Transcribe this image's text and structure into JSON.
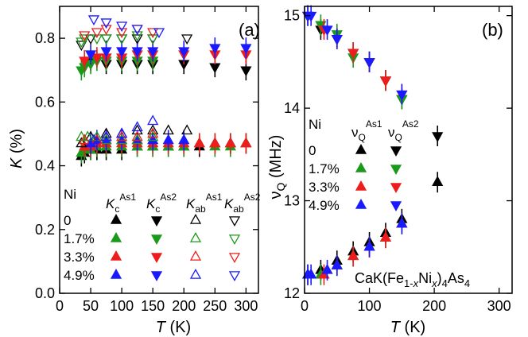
{
  "colors": {
    "black": "#000000",
    "green": "#1a9a1a",
    "red": "#ee1c1c",
    "blue": "#1a1aff"
  },
  "chart_data": [
    {
      "type": "scatter",
      "panel_label": "(a)",
      "xlabel_italic": "T",
      "xlabel_unit": " (K)",
      "ylabel_italic": "K",
      "ylabel_unit": " (%)",
      "xlim": [
        0,
        320
      ],
      "ylim": [
        0.0,
        0.9
      ],
      "xticks": [
        0,
        50,
        100,
        150,
        200,
        250,
        300
      ],
      "yticks": [
        0.0,
        0.2,
        0.4,
        0.6,
        0.8
      ],
      "ytick_labels": [
        "0.0",
        "0.2",
        "0.4",
        "0.6",
        "0.8"
      ],
      "legend": {
        "row_header": "Ni",
        "columns": [
          {
            "base": "K",
            "sub": "c",
            "sup": "As1",
            "marker": "tri-up-filled"
          },
          {
            "base": "K",
            "sub": "c",
            "sup": "As2",
            "marker": "tri-down-filled"
          },
          {
            "base": "K",
            "sub": "ab",
            "sup": "As1",
            "marker": "tri-up-open"
          },
          {
            "base": "K",
            "sub": "ab",
            "sup": "As2",
            "marker": "tri-down-open"
          }
        ],
        "rows": [
          {
            "label": "0",
            "color": "black"
          },
          {
            "label": "1.7%",
            "color": "green"
          },
          {
            "label": "3.3%",
            "color": "red"
          },
          {
            "label": "4.9%",
            "color": "blue"
          }
        ]
      },
      "series": [
        {
          "color": "black",
          "marker": "tri-down-filled",
          "points": [
            [
              50,
              0.73
            ],
            [
              75,
              0.72
            ],
            [
              100,
              0.72
            ],
            [
              125,
              0.72
            ],
            [
              150,
              0.72
            ],
            [
              200,
              0.72
            ],
            [
              250,
              0.71
            ],
            [
              300,
              0.7
            ]
          ]
        },
        {
          "color": "green",
          "marker": "tri-down-filled",
          "points": [
            [
              35,
              0.7
            ],
            [
              40,
              0.71
            ],
            [
              50,
              0.72
            ],
            [
              60,
              0.73
            ],
            [
              75,
              0.73
            ],
            [
              100,
              0.73
            ],
            [
              125,
              0.73
            ],
            [
              150,
              0.73
            ]
          ]
        },
        {
          "color": "red",
          "marker": "tri-down-filled",
          "points": [
            [
              40,
              0.73
            ],
            [
              60,
              0.74
            ],
            [
              75,
              0.74
            ],
            [
              100,
              0.74
            ],
            [
              125,
              0.75
            ],
            [
              150,
              0.75
            ],
            [
              200,
              0.75
            ],
            [
              250,
              0.75
            ],
            [
              300,
              0.75
            ]
          ]
        },
        {
          "color": "blue",
          "marker": "tri-down-filled",
          "points": [
            [
              50,
              0.75
            ],
            [
              75,
              0.76
            ],
            [
              100,
              0.76
            ],
            [
              125,
              0.76
            ],
            [
              150,
              0.76
            ],
            [
              200,
              0.76
            ],
            [
              250,
              0.77
            ],
            [
              300,
              0.77
            ]
          ]
        },
        {
          "color": "black",
          "marker": "tri-down-open",
          "points": [
            [
              35,
              0.78
            ],
            [
              50,
              0.8
            ],
            [
              75,
              0.8
            ],
            [
              100,
              0.8
            ],
            [
              125,
              0.8
            ],
            [
              150,
              0.8
            ],
            [
              205,
              0.8
            ]
          ]
        },
        {
          "color": "green",
          "marker": "tri-down-open",
          "points": [
            [
              35,
              0.79
            ],
            [
              40,
              0.8
            ],
            [
              60,
              0.8
            ],
            [
              75,
              0.8
            ],
            [
              100,
              0.8
            ],
            [
              125,
              0.81
            ],
            [
              150,
              0.8
            ]
          ]
        },
        {
          "color": "red",
          "marker": "tri-down-open",
          "points": [
            [
              40,
              0.81
            ],
            [
              60,
              0.82
            ],
            [
              75,
              0.83
            ],
            [
              100,
              0.82
            ],
            [
              125,
              0.83
            ],
            [
              150,
              0.82
            ]
          ]
        },
        {
          "color": "blue",
          "marker": "tri-down-open",
          "points": [
            [
              55,
              0.86
            ],
            [
              75,
              0.85
            ],
            [
              100,
              0.84
            ],
            [
              125,
              0.83
            ],
            [
              160,
              0.82
            ]
          ]
        },
        {
          "color": "black",
          "marker": "tri-up-filled",
          "points": [
            [
              35,
              0.43
            ],
            [
              40,
              0.44
            ],
            [
              50,
              0.45
            ],
            [
              60,
              0.45
            ],
            [
              75,
              0.45
            ],
            [
              100,
              0.45
            ],
            [
              125,
              0.46
            ],
            [
              150,
              0.46
            ],
            [
              175,
              0.46
            ],
            [
              200,
              0.46
            ],
            [
              225,
              0.46
            ],
            [
              250,
              0.47
            ],
            [
              275,
              0.47
            ],
            [
              300,
              0.47
            ]
          ]
        },
        {
          "color": "green",
          "marker": "tri-up-filled",
          "points": [
            [
              35,
              0.44
            ],
            [
              40,
              0.45
            ],
            [
              50,
              0.45
            ],
            [
              60,
              0.46
            ],
            [
              75,
              0.46
            ],
            [
              100,
              0.46
            ],
            [
              125,
              0.46
            ],
            [
              150,
              0.46
            ],
            [
              175,
              0.46
            ],
            [
              200,
              0.46
            ],
            [
              225,
              0.47
            ],
            [
              250,
              0.46
            ],
            [
              275,
              0.46
            ],
            [
              300,
              0.47
            ]
          ]
        },
        {
          "color": "red",
          "marker": "tri-up-filled",
          "points": [
            [
              40,
              0.46
            ],
            [
              50,
              0.46
            ],
            [
              60,
              0.47
            ],
            [
              75,
              0.47
            ],
            [
              100,
              0.47
            ],
            [
              125,
              0.47
            ],
            [
              150,
              0.47
            ],
            [
              175,
              0.47
            ],
            [
              200,
              0.47
            ],
            [
              225,
              0.47
            ],
            [
              250,
              0.47
            ],
            [
              275,
              0.47
            ],
            [
              300,
              0.47
            ]
          ]
        },
        {
          "color": "blue",
          "marker": "tri-up-filled",
          "points": [
            [
              50,
              0.47
            ],
            [
              60,
              0.48
            ],
            [
              75,
              0.48
            ],
            [
              100,
              0.48
            ],
            [
              125,
              0.48
            ],
            [
              150,
              0.48
            ],
            [
              175,
              0.48
            ],
            [
              200,
              0.48
            ]
          ]
        },
        {
          "color": "black",
          "marker": "tri-up-open",
          "points": [
            [
              35,
              0.47
            ],
            [
              50,
              0.49
            ],
            [
              75,
              0.5
            ],
            [
              100,
              0.5
            ],
            [
              125,
              0.51
            ],
            [
              150,
              0.51
            ],
            [
              175,
              0.51
            ],
            [
              205,
              0.51
            ]
          ]
        },
        {
          "color": "green",
          "marker": "tri-up-open",
          "points": [
            [
              35,
              0.49
            ],
            [
              45,
              0.49
            ],
            [
              60,
              0.49
            ],
            [
              75,
              0.48
            ],
            [
              100,
              0.48
            ],
            [
              125,
              0.48
            ],
            [
              150,
              0.49
            ]
          ]
        },
        {
          "color": "red",
          "marker": "tri-up-open",
          "points": [
            [
              40,
              0.48
            ],
            [
              60,
              0.48
            ],
            [
              75,
              0.49
            ],
            [
              100,
              0.49
            ],
            [
              125,
              0.49
            ],
            [
              150,
              0.5
            ]
          ]
        },
        {
          "color": "blue",
          "marker": "tri-up-open",
          "points": [
            [
              55,
              0.48
            ],
            [
              75,
              0.49
            ],
            [
              100,
              0.5
            ],
            [
              125,
              0.52
            ],
            [
              150,
              0.54
            ]
          ]
        }
      ]
    },
    {
      "type": "scatter",
      "panel_label": "(b)",
      "xlabel_italic": "T",
      "xlabel_unit": " (K)",
      "ylabel_nu": "ν",
      "ylabel_sub": "Q",
      "ylabel_unit": " (MHz)",
      "xlim": [
        0,
        320
      ],
      "ylim": [
        12.0,
        15.1
      ],
      "xticks": [
        0,
        100,
        200,
        300
      ],
      "yticks": [
        12,
        13,
        14,
        15
      ],
      "compound": {
        "a": "CaK(Fe",
        "b": "1-",
        "c": "x",
        "d": "Ni",
        "e": "x",
        "f": ")",
        "g": "4",
        "h": "As",
        "i": "4"
      },
      "legend": {
        "row_header": "Ni",
        "columns": [
          {
            "base": "ν",
            "sub": "Q",
            "sup": "As1",
            "marker": "tri-up-filled"
          },
          {
            "base": "ν",
            "sub": "Q",
            "sup": "As2",
            "marker": "tri-down-filled"
          }
        ],
        "rows": [
          {
            "label": "0",
            "color": "black"
          },
          {
            "label": "1.7%",
            "color": "green"
          },
          {
            "label": "3.3%",
            "color": "red"
          },
          {
            "label": "4.9%",
            "color": "blue"
          }
        ]
      },
      "series": [
        {
          "color": "black",
          "marker": "tri-down-filled",
          "points": [
            [
              5,
              15.0
            ],
            [
              25,
              14.85
            ],
            [
              50,
              14.75
            ],
            [
              75,
              14.6
            ],
            [
              100,
              14.5
            ],
            [
              125,
              14.3
            ],
            [
              150,
              14.1
            ],
            [
              205,
              13.7
            ]
          ]
        },
        {
          "color": "green",
          "marker": "tri-down-filled",
          "points": [
            [
              25,
              14.9
            ],
            [
              50,
              14.8
            ],
            [
              75,
              14.55
            ],
            [
              100,
              14.5
            ],
            [
              125,
              14.3
            ],
            [
              150,
              14.1
            ]
          ]
        },
        {
          "color": "red",
          "marker": "tri-down-filled",
          "points": [
            [
              30,
              14.85
            ],
            [
              50,
              14.75
            ],
            [
              75,
              14.6
            ],
            [
              100,
              14.5
            ],
            [
              125,
              14.3
            ],
            [
              150,
              14.15
            ]
          ]
        },
        {
          "color": "blue",
          "marker": "tri-down-filled",
          "points": [
            [
              5,
              15.0
            ],
            [
              10,
              15.0
            ],
            [
              35,
              14.85
            ],
            [
              50,
              14.75
            ],
            [
              100,
              14.5
            ],
            [
              150,
              14.15
            ]
          ]
        },
        {
          "color": "black",
          "marker": "tri-up-filled",
          "points": [
            [
              5,
              12.2
            ],
            [
              25,
              12.25
            ],
            [
              50,
              12.35
            ],
            [
              75,
              12.45
            ],
            [
              100,
              12.55
            ],
            [
              125,
              12.65
            ],
            [
              150,
              12.8
            ],
            [
              205,
              13.2
            ]
          ]
        },
        {
          "color": "green",
          "marker": "tri-up-filled",
          "points": [
            [
              25,
              12.2
            ],
            [
              50,
              12.3
            ],
            [
              75,
              12.4
            ],
            [
              100,
              12.5
            ],
            [
              125,
              12.6
            ],
            [
              150,
              12.75
            ]
          ]
        },
        {
          "color": "red",
          "marker": "tri-up-filled",
          "points": [
            [
              30,
              12.2
            ],
            [
              50,
              12.3
            ],
            [
              75,
              12.4
            ],
            [
              100,
              12.5
            ],
            [
              125,
              12.6
            ],
            [
              150,
              12.75
            ]
          ]
        },
        {
          "color": "blue",
          "marker": "tri-up-filled",
          "points": [
            [
              5,
              12.2
            ],
            [
              10,
              12.2
            ],
            [
              35,
              12.25
            ],
            [
              50,
              12.3
            ],
            [
              100,
              12.5
            ],
            [
              150,
              12.75
            ]
          ]
        }
      ]
    }
  ]
}
